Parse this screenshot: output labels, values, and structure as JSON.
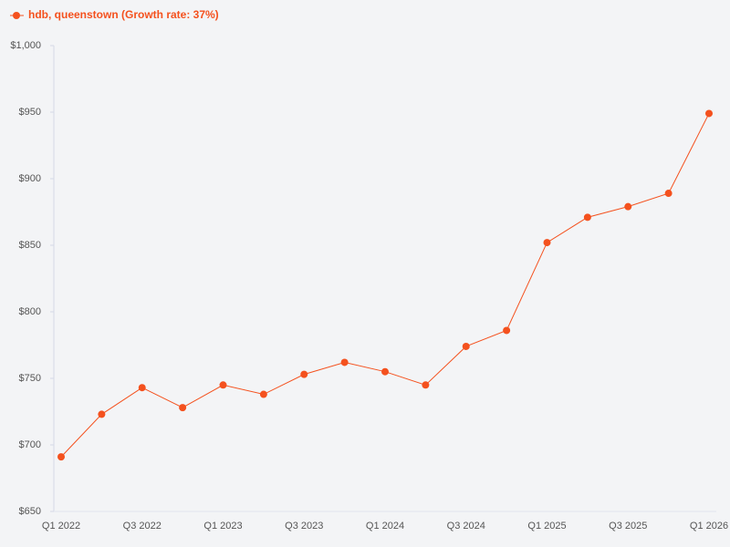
{
  "chart_data": {
    "type": "line",
    "categories": [
      "Q1 2022",
      null,
      "Q3 2022",
      null,
      "Q1 2023",
      null,
      "Q3 2023",
      null,
      "Q1 2024",
      null,
      "Q3 2024",
      null,
      "Q1 2025",
      null,
      "Q3 2025",
      null,
      "Q1 2026"
    ],
    "series": [
      {
        "name": "hdb, queenstown (Growth rate: 37%)",
        "color": "#f4511e",
        "values": [
          691,
          723,
          743,
          728,
          745,
          738,
          753,
          762,
          755,
          745,
          774,
          786,
          852,
          871,
          879,
          889,
          949
        ]
      }
    ],
    "ylim": [
      650,
      1000
    ],
    "yticks": [
      {
        "value": 650,
        "label": "$650"
      },
      {
        "value": 700,
        "label": "$700"
      },
      {
        "value": 750,
        "label": "$750"
      },
      {
        "value": 800,
        "label": "$800"
      },
      {
        "value": 850,
        "label": "$850"
      },
      {
        "value": 900,
        "label": "$900"
      },
      {
        "value": 950,
        "label": "$950"
      },
      {
        "value": 1000,
        "label": "$1,000"
      }
    ],
    "grid": false
  }
}
